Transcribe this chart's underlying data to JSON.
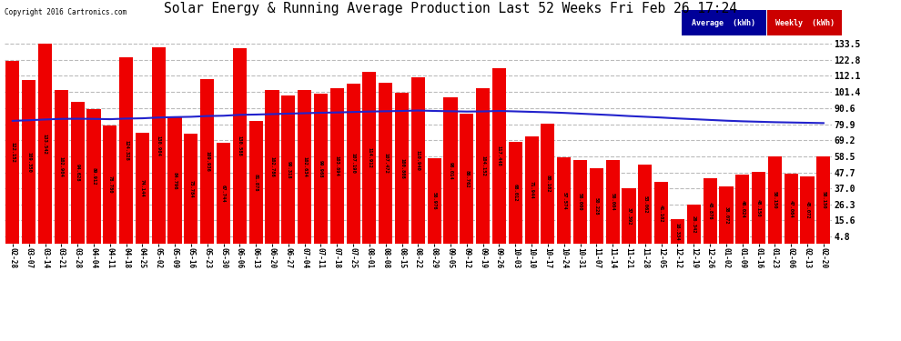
{
  "title": "Solar Energy & Running Average Production Last 52 Weeks Fri Feb 26 17:24",
  "copyright": "Copyright 2016 Cartronics.com",
  "bar_color": "#ee0000",
  "avg_line_color": "#2222cc",
  "background_color": "#ffffff",
  "grid_color": "#bbbbbb",
  "yticks": [
    4.8,
    15.6,
    26.3,
    37.0,
    47.7,
    58.5,
    69.2,
    79.9,
    90.6,
    101.4,
    112.1,
    122.8,
    133.5
  ],
  "categories": [
    "02-28",
    "03-07",
    "03-14",
    "03-21",
    "03-28",
    "04-04",
    "04-11",
    "04-18",
    "04-25",
    "05-02",
    "05-09",
    "05-16",
    "05-23",
    "05-30",
    "06-06",
    "06-13",
    "06-20",
    "06-27",
    "07-04",
    "07-11",
    "07-18",
    "07-25",
    "08-01",
    "08-08",
    "08-15",
    "08-22",
    "08-29",
    "09-05",
    "09-12",
    "09-19",
    "09-26",
    "10-03",
    "10-10",
    "10-17",
    "10-24",
    "10-31",
    "11-07",
    "11-14",
    "11-21",
    "11-28",
    "12-05",
    "12-12",
    "12-19",
    "12-26",
    "01-02",
    "01-09",
    "01-16",
    "01-23",
    "02-06",
    "02-13",
    "02-20"
  ],
  "weekly_values": [
    122.152,
    109.35,
    133.542,
    102.904,
    94.628,
    89.912,
    78.78,
    124.328,
    74.144,
    130.904,
    84.796,
    73.784,
    109.936,
    67.744,
    130.588,
    81.878,
    102.786,
    99.318,
    102.634,
    99.968,
    103.894,
    107.19,
    114.912,
    107.472,
    100.808,
    110.94,
    56.976,
    98.014,
    86.762,
    104.152,
    117.448,
    68.012,
    71.944,
    80.102,
    57.574,
    56.0,
    50.228,
    56.004,
    37.392,
    53.062,
    41.102,
    16.334,
    26.342,
    43.876,
    38.072,
    46.024,
    48.15,
    58.15,
    47.064,
    45.072,
    58.15
  ],
  "avg_values": [
    82.1,
    82.5,
    83.0,
    83.4,
    83.5,
    83.4,
    83.2,
    83.6,
    83.8,
    84.3,
    84.6,
    84.8,
    85.3,
    85.5,
    86.1,
    86.3,
    86.6,
    86.9,
    87.2,
    87.5,
    87.7,
    88.0,
    88.3,
    88.5,
    88.7,
    89.0,
    88.7,
    88.5,
    88.3,
    88.4,
    88.7,
    88.4,
    88.1,
    87.8,
    87.4,
    86.9,
    86.4,
    85.9,
    85.3,
    84.8,
    84.3,
    83.7,
    83.2,
    82.7,
    82.2,
    81.8,
    81.5,
    81.2,
    81.0,
    80.8,
    80.6
  ],
  "legend_avg_bg": "#000099",
  "legend_weekly_bg": "#cc0000",
  "legend_text_color": "#ffffff",
  "legend_font": "monospace"
}
